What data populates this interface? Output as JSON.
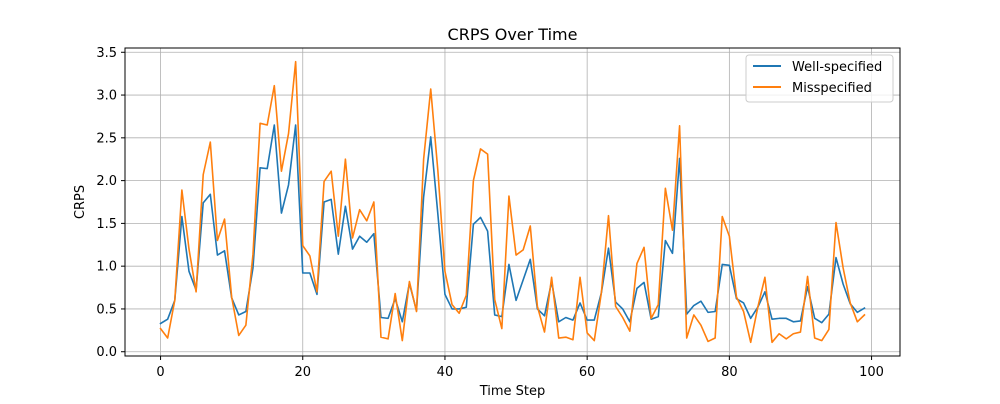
{
  "chart_data": {
    "type": "line",
    "title": "CRPS Over Time",
    "xlabel": "Time Step",
    "ylabel": "CRPS",
    "xlim": [
      -5,
      104
    ],
    "ylim": [
      -0.05,
      3.55
    ],
    "xticks": [
      0,
      20,
      40,
      60,
      80,
      100
    ],
    "xtick_labels": [
      "0",
      "20",
      "40",
      "60",
      "80",
      "100"
    ],
    "yticks": [
      0.0,
      0.5,
      1.0,
      1.5,
      2.0,
      2.5,
      3.0,
      3.5
    ],
    "ytick_labels": [
      "0.0",
      "0.5",
      "1.0",
      "1.5",
      "2.0",
      "2.5",
      "3.0",
      "3.5"
    ],
    "grid": true,
    "legend": "top-right",
    "x": [
      0,
      1,
      2,
      3,
      4,
      5,
      6,
      7,
      8,
      9,
      10,
      11,
      12,
      13,
      14,
      15,
      16,
      17,
      18,
      19,
      20,
      21,
      22,
      23,
      24,
      25,
      26,
      27,
      28,
      29,
      30,
      31,
      32,
      33,
      34,
      35,
      36,
      37,
      38,
      39,
      40,
      41,
      42,
      43,
      44,
      45,
      46,
      47,
      48,
      49,
      50,
      51,
      52,
      53,
      54,
      55,
      56,
      57,
      58,
      59,
      60,
      61,
      62,
      63,
      64,
      65,
      66,
      67,
      68,
      69,
      70,
      71,
      72,
      73,
      74,
      75,
      76,
      77,
      78,
      79,
      80,
      81,
      82,
      83,
      84,
      85,
      86,
      87,
      88,
      89,
      90,
      91,
      92,
      93,
      94,
      95,
      96,
      97,
      98,
      99
    ],
    "series": [
      {
        "name": "Well-specified",
        "color": "#1f77b4",
        "values": [
          0.33,
          0.38,
          0.6,
          1.58,
          0.94,
          0.72,
          1.74,
          1.84,
          1.13,
          1.18,
          0.63,
          0.43,
          0.47,
          0.98,
          2.15,
          2.14,
          2.65,
          1.62,
          1.95,
          2.65,
          0.92,
          0.92,
          0.67,
          1.75,
          1.78,
          1.14,
          1.7,
          1.2,
          1.35,
          1.28,
          1.38,
          0.4,
          0.39,
          0.62,
          0.35,
          0.8,
          0.48,
          1.81,
          2.51,
          1.61,
          0.67,
          0.5,
          0.5,
          0.52,
          1.49,
          1.57,
          1.41,
          0.43,
          0.41,
          1.02,
          0.6,
          0.84,
          1.08,
          0.5,
          0.42,
          0.82,
          0.35,
          0.4,
          0.37,
          0.57,
          0.37,
          0.37,
          0.69,
          1.21,
          0.58,
          0.5,
          0.35,
          0.74,
          0.81,
          0.38,
          0.41,
          1.3,
          1.15,
          2.26,
          0.44,
          0.54,
          0.59,
          0.46,
          0.47,
          1.02,
          1.01,
          0.62,
          0.57,
          0.39,
          0.52,
          0.7,
          0.38,
          0.39,
          0.39,
          0.35,
          0.36,
          0.76,
          0.39,
          0.34,
          0.44,
          1.1,
          0.79,
          0.56,
          0.46,
          0.51
        ]
      },
      {
        "name": "Misspecified",
        "color": "#ff7f0e",
        "values": [
          0.27,
          0.16,
          0.6,
          1.89,
          1.2,
          0.7,
          2.07,
          2.45,
          1.3,
          1.55,
          0.64,
          0.19,
          0.31,
          1.14,
          2.67,
          2.65,
          3.11,
          2.11,
          2.55,
          3.39,
          1.24,
          1.12,
          0.7,
          1.99,
          2.11,
          1.35,
          2.25,
          1.33,
          1.66,
          1.53,
          1.75,
          0.17,
          0.15,
          0.68,
          0.13,
          0.82,
          0.47,
          2.25,
          3.07,
          2.12,
          0.94,
          0.55,
          0.45,
          0.66,
          2.0,
          2.37,
          2.31,
          0.61,
          0.27,
          1.82,
          1.13,
          1.19,
          1.47,
          0.53,
          0.23,
          0.87,
          0.16,
          0.17,
          0.14,
          0.87,
          0.22,
          0.13,
          0.69,
          1.59,
          0.53,
          0.4,
          0.24,
          1.03,
          1.22,
          0.39,
          0.55,
          1.91,
          1.42,
          2.64,
          0.16,
          0.43,
          0.31,
          0.12,
          0.16,
          1.58,
          1.35,
          0.64,
          0.47,
          0.11,
          0.52,
          0.87,
          0.11,
          0.21,
          0.15,
          0.21,
          0.23,
          0.88,
          0.16,
          0.13,
          0.26,
          1.51,
          0.98,
          0.57,
          0.35,
          0.43
        ]
      }
    ]
  }
}
